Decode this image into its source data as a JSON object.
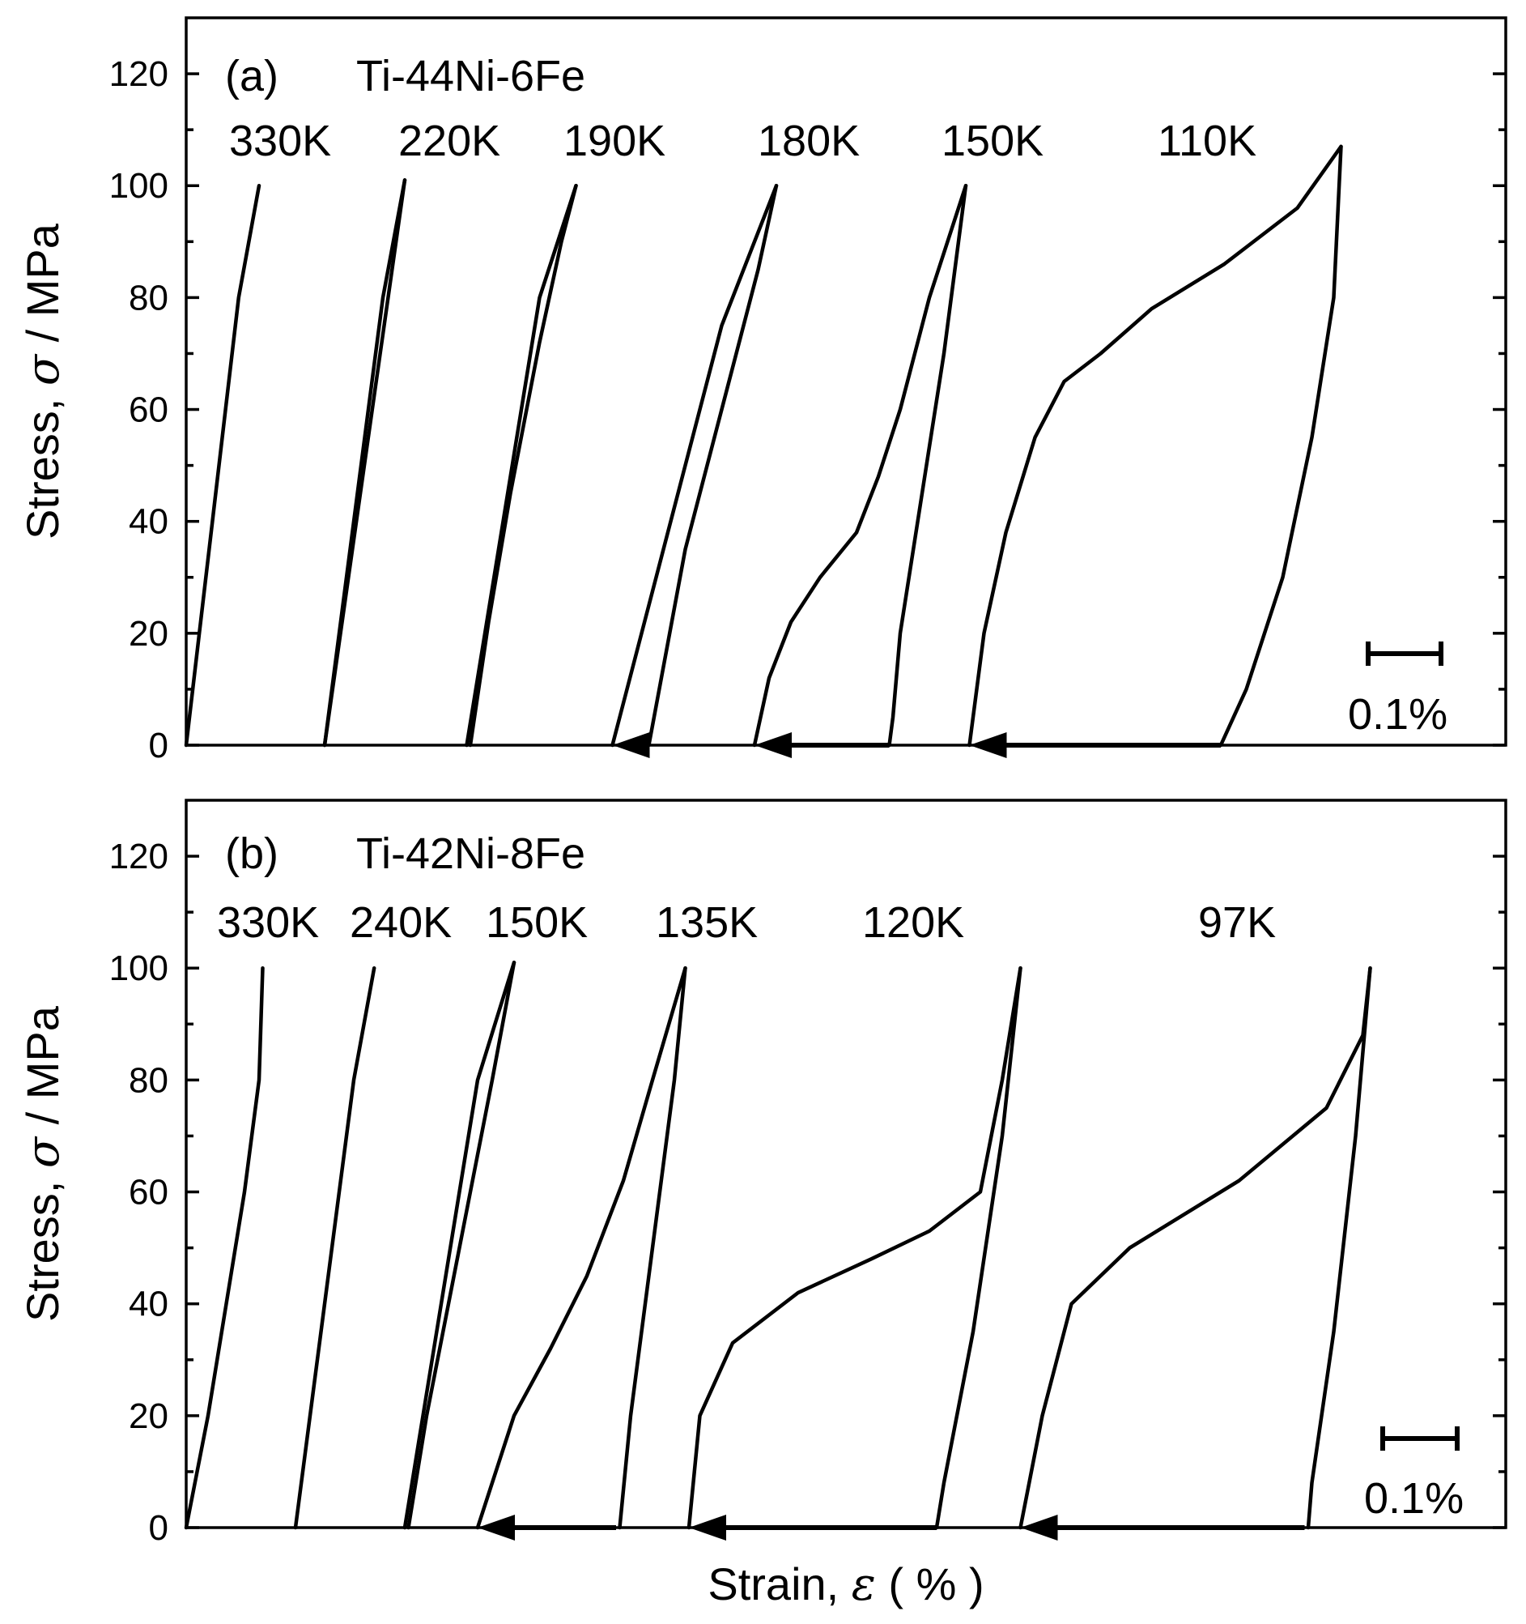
{
  "chart_data": [
    {
      "type": "line",
      "panel": "(a)",
      "title": "Ti-44Ni-6Fe",
      "ylabel_prefix": "Stress, ",
      "ylabel_symbol": "σ",
      "ylabel_suffix": " / MPa",
      "ylim": [
        0,
        130
      ],
      "yticks": [
        0,
        20,
        40,
        60,
        80,
        100,
        120
      ],
      "scale_bar_label": "0.1%",
      "scale_bar_strain": 0.1,
      "strain_span": 1.8,
      "series": [
        {
          "name": "330K",
          "offset": 0.0,
          "load": [
            [
              0,
              0
            ],
            [
              0.018,
              20
            ],
            [
              0.036,
              40
            ],
            [
              0.054,
              60
            ],
            [
              0.072,
              80
            ],
            [
              0.1,
              100
            ]
          ],
          "unload": []
        },
        {
          "name": "220K",
          "offset": 0.19,
          "load": [
            [
              0,
              0
            ],
            [
              0.02,
              20
            ],
            [
              0.04,
              40
            ],
            [
              0.06,
              60
            ],
            [
              0.08,
              80
            ],
            [
              0.11,
              101
            ]
          ],
          "unload": [
            [
              0.11,
              101
            ],
            [
              0,
              0
            ]
          ]
        },
        {
          "name": "190K",
          "offset": 0.385,
          "load": [
            [
              0,
              0
            ],
            [
              0.025,
              20
            ],
            [
              0.05,
              40
            ],
            [
              0.075,
              60
            ],
            [
              0.1,
              80
            ],
            [
              0.15,
              100
            ]
          ],
          "unload": [
            [
              0.15,
              100
            ],
            [
              0.13,
              90
            ],
            [
              0.1,
              72
            ],
            [
              0.06,
              45
            ],
            [
              0.03,
              22
            ],
            [
              0.005,
              0
            ]
          ]
        },
        {
          "name": "180K",
          "offset": 0.585,
          "load": [
            [
              0,
              0
            ],
            [
              0.05,
              25
            ],
            [
              0.1,
              50
            ],
            [
              0.15,
              75
            ],
            [
              0.225,
              100
            ]
          ],
          "unload": [
            [
              0.225,
              100
            ],
            [
              0.2,
              85
            ],
            [
              0.15,
              60
            ],
            [
              0.1,
              35
            ],
            [
              0.05,
              0
            ]
          ]
        },
        {
          "name": "150K",
          "offset": 0.78,
          "load": [
            [
              0,
              0
            ],
            [
              0.02,
              12
            ],
            [
              0.05,
              22
            ],
            [
              0.09,
              30
            ],
            [
              0.14,
              38
            ],
            [
              0.17,
              48
            ],
            [
              0.2,
              60
            ],
            [
              0.24,
              80
            ],
            [
              0.29,
              100
            ]
          ],
          "unload": [
            [
              0.29,
              100
            ],
            [
              0.28,
              90
            ],
            [
              0.26,
              70
            ],
            [
              0.23,
              45
            ],
            [
              0.2,
              20
            ],
            [
              0.19,
              5
            ],
            [
              0.185,
              0
            ]
          ]
        },
        {
          "name": "110K",
          "offset": 1.075,
          "load": [
            [
              0,
              0
            ],
            [
              0.02,
              20
            ],
            [
              0.05,
              38
            ],
            [
              0.09,
              55
            ],
            [
              0.13,
              65
            ],
            [
              0.18,
              70
            ],
            [
              0.25,
              78
            ],
            [
              0.35,
              86
            ],
            [
              0.45,
              96
            ],
            [
              0.51,
              107
            ]
          ],
          "unload": [
            [
              0.51,
              107
            ],
            [
              0.5,
              80
            ],
            [
              0.47,
              55
            ],
            [
              0.43,
              30
            ],
            [
              0.38,
              10
            ],
            [
              0.345,
              0
            ]
          ]
        }
      ],
      "arrows": [
        {
          "from": 0.635,
          "to": 0.585
        },
        {
          "from": 0.965,
          "to": 0.78
        },
        {
          "from": 1.42,
          "to": 1.075
        }
      ]
    },
    {
      "type": "line",
      "panel": "(b)",
      "title": "Ti-42Ni-8Fe",
      "ylabel_prefix": "Stress, ",
      "ylabel_symbol": "σ",
      "ylabel_suffix": " / MPa",
      "ylim": [
        0,
        130
      ],
      "yticks": [
        0,
        20,
        40,
        60,
        80,
        100,
        120
      ],
      "scale_bar_label": "0.1%",
      "scale_bar_strain": 0.1,
      "strain_span": 1.8,
      "xlabel_prefix": "Strain, ",
      "xlabel_symbol": "ε",
      "xlabel_suffix": " ( % )",
      "series": [
        {
          "name": "330K",
          "offset": 0.0,
          "load": [
            [
              0,
              0
            ],
            [
              0.03,
              20
            ],
            [
              0.055,
              40
            ],
            [
              0.08,
              60
            ],
            [
              0.1,
              80
            ],
            [
              0.105,
              100
            ]
          ],
          "unload": []
        },
        {
          "name": "240K",
          "offset": 0.15,
          "load": [
            [
              0,
              0
            ],
            [
              0.02,
              20
            ],
            [
              0.04,
              40
            ],
            [
              0.06,
              60
            ],
            [
              0.08,
              80
            ],
            [
              0.108,
              100
            ]
          ],
          "unload": []
        },
        {
          "name": "150K",
          "offset": 0.3,
          "load": [
            [
              0,
              0
            ],
            [
              0.025,
              20
            ],
            [
              0.05,
              40
            ],
            [
              0.075,
              60
            ],
            [
              0.1,
              80
            ],
            [
              0.15,
              101
            ]
          ],
          "unload": [
            [
              0.15,
              101
            ],
            [
              0.12,
              80
            ],
            [
              0.09,
              60
            ],
            [
              0.06,
              40
            ],
            [
              0.03,
              20
            ],
            [
              0.005,
              0
            ]
          ]
        },
        {
          "name": "135K",
          "offset": 0.4,
          "load": [
            [
              0,
              0
            ],
            [
              0.05,
              20
            ],
            [
              0.1,
              32
            ],
            [
              0.15,
              45
            ],
            [
              0.2,
              62
            ],
            [
              0.24,
              80
            ],
            [
              0.285,
              100
            ]
          ],
          "unload": [
            [
              0.285,
              100
            ],
            [
              0.27,
              80
            ],
            [
              0.24,
              50
            ],
            [
              0.21,
              20
            ],
            [
              0.195,
              0
            ]
          ]
        },
        {
          "name": "120K",
          "offset": 0.69,
          "load": [
            [
              0,
              0
            ],
            [
              0.015,
              20
            ],
            [
              0.06,
              33
            ],
            [
              0.15,
              42
            ],
            [
              0.25,
              48
            ],
            [
              0.33,
              53
            ],
            [
              0.4,
              60
            ],
            [
              0.43,
              80
            ],
            [
              0.455,
              100
            ]
          ],
          "unload": [
            [
              0.455,
              100
            ],
            [
              0.43,
              70
            ],
            [
              0.39,
              35
            ],
            [
              0.35,
              8
            ],
            [
              0.34,
              0
            ]
          ]
        },
        {
          "name": "97K",
          "offset": 1.145,
          "load": [
            [
              0,
              0
            ],
            [
              0.03,
              20
            ],
            [
              0.07,
              40
            ],
            [
              0.15,
              50
            ],
            [
              0.3,
              62
            ],
            [
              0.42,
              75
            ],
            [
              0.47,
              88
            ],
            [
              0.48,
              100
            ]
          ],
          "unload": [
            [
              0.48,
              100
            ],
            [
              0.46,
              70
            ],
            [
              0.43,
              35
            ],
            [
              0.4,
              8
            ],
            [
              0.395,
              0
            ]
          ]
        }
      ],
      "arrows": [
        {
          "from": 0.59,
          "to": 0.4
        },
        {
          "from": 1.03,
          "to": 0.69
        },
        {
          "from": 1.535,
          "to": 1.145
        }
      ]
    }
  ],
  "labels": {
    "a": {
      "panel": "(a)",
      "title": "Ti-44Ni-6Fe",
      "scale": "0.1%",
      "temps": [
        "330K",
        "220K",
        "190K",
        "180K",
        "150K",
        "110K"
      ]
    },
    "b": {
      "panel": "(b)",
      "title": "Ti-42Ni-8Fe",
      "scale": "0.1%",
      "temps": [
        "330K",
        "240K",
        "150K",
        "135K",
        "120K",
        "97K"
      ]
    },
    "ylabel_prefix": "Stress, ",
    "ylabel_symbol": "σ",
    "ylabel_suffix": " / MPa",
    "xlabel_prefix": "Strain, ",
    "xlabel_symbol": "ε",
    "xlabel_suffix": " ( % )"
  }
}
